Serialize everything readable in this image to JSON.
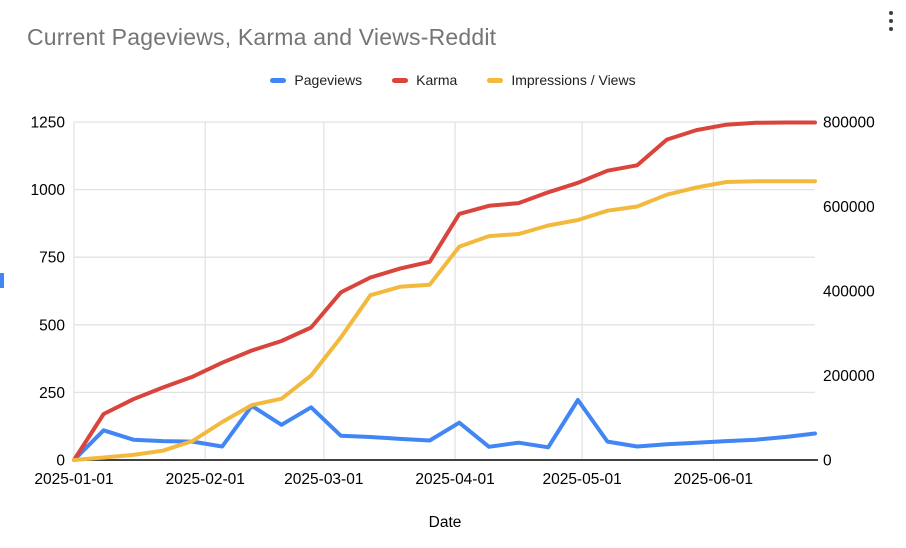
{
  "header": {
    "title": "Current Pageviews, Karma and Views-Reddit"
  },
  "chart_data": {
    "type": "line",
    "title": "Current Pageviews, Karma and Views-Reddit",
    "xlabel": "Date",
    "ylabel_left": "",
    "legend_position": "top",
    "grid": true,
    "x": [
      "2025-01-01",
      "2025-01-08",
      "2025-01-15",
      "2025-01-22",
      "2025-01-29",
      "2025-02-05",
      "2025-02-12",
      "2025-02-19",
      "2025-02-26",
      "2025-03-05",
      "2025-03-12",
      "2025-03-19",
      "2025-03-26",
      "2025-04-02",
      "2025-04-09",
      "2025-04-16",
      "2025-04-23",
      "2025-04-30",
      "2025-05-07",
      "2025-05-14",
      "2025-05-21",
      "2025-05-28",
      "2025-06-04",
      "2025-06-11",
      "2025-06-18",
      "2025-06-25"
    ],
    "series": [
      {
        "name": "Pageviews",
        "axis": "left",
        "color": "#4285f4",
        "values": [
          0,
          110,
          75,
          70,
          68,
          50,
          200,
          130,
          195,
          90,
          85,
          78,
          72,
          138,
          49,
          64,
          47,
          222,
          68,
          50,
          58,
          64,
          70,
          75,
          85,
          98
        ]
      },
      {
        "name": "Karma",
        "axis": "left",
        "color": "#d9453c",
        "values": [
          0,
          170,
          225,
          268,
          308,
          360,
          405,
          440,
          490,
          620,
          675,
          708,
          733,
          910,
          940,
          950,
          990,
          1025,
          1070,
          1090,
          1185,
          1220,
          1240,
          1247,
          1248,
          1248
        ]
      },
      {
        "name": "Impressions / Views",
        "axis": "right",
        "color": "#f3b93d",
        "values": [
          0,
          6000,
          12000,
          22000,
          45000,
          90000,
          130000,
          145000,
          200000,
          290000,
          390000,
          410000,
          415000,
          505000,
          530000,
          535000,
          555000,
          568000,
          590000,
          600000,
          628000,
          645000,
          658000,
          660000,
          660000,
          660000
        ]
      }
    ],
    "left_axis": {
      "ticks": [
        0,
        250,
        500,
        750,
        1000,
        1250
      ],
      "range": [
        0,
        1250
      ]
    },
    "right_axis": {
      "ticks": [
        0,
        200000,
        400000,
        600000,
        800000
      ],
      "range": [
        0,
        800000
      ]
    },
    "x_ticks": [
      "2025-01-01",
      "2025-02-01",
      "2025-03-01",
      "2025-04-01",
      "2025-05-01",
      "2025-06-01"
    ]
  }
}
